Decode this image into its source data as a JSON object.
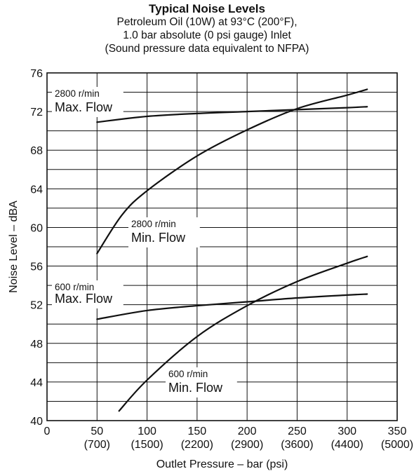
{
  "chart_data": {
    "type": "line",
    "title": "Typical Noise Levels",
    "subtitle": [
      "Petroleum Oil (10W) at 93°C (200°F),",
      "1.0 bar absolute (0 psi gauge) Inlet",
      "(Sound pressure data equivalent to NFPA)"
    ],
    "xlabel": "Outlet Pressure – bar (psi)",
    "ylabel": "Noise Level – dBA",
    "xlim": [
      0,
      350
    ],
    "ylim": [
      40,
      76
    ],
    "x_ticks": [
      {
        "value": 0,
        "label": "0",
        "sub": ""
      },
      {
        "value": 50,
        "label": "50",
        "sub": "(700)"
      },
      {
        "value": 100,
        "label": "100",
        "sub": "(1500)"
      },
      {
        "value": 150,
        "label": "150",
        "sub": "(2200)"
      },
      {
        "value": 200,
        "label": "200",
        "sub": "(2900)"
      },
      {
        "value": 250,
        "label": "250",
        "sub": "(3600)"
      },
      {
        "value": 300,
        "label": "300",
        "sub": "(4400)"
      },
      {
        "value": 350,
        "label": "350",
        "sub": "(5000)"
      }
    ],
    "y_ticks": [
      40,
      44,
      48,
      52,
      56,
      60,
      64,
      68,
      72,
      76
    ],
    "grid": true,
    "series": [
      {
        "name_line1": "2800 r/min",
        "name_line2": "Max. Flow",
        "x": [
          50,
          100,
          150,
          200,
          250,
          300,
          320
        ],
        "y": [
          70.9,
          71.5,
          71.8,
          72.0,
          72.2,
          72.4,
          72.5
        ]
      },
      {
        "name_line1": "2800 r/min",
        "name_line2": "Min. Flow",
        "x": [
          50,
          75,
          100,
          150,
          200,
          250,
          300,
          320
        ],
        "y": [
          57.3,
          61.3,
          63.8,
          67.4,
          70.1,
          72.3,
          73.7,
          74.3
        ]
      },
      {
        "name_line1": "600 r/min",
        "name_line2": "Max. Flow",
        "x": [
          50,
          100,
          150,
          200,
          250,
          300,
          320
        ],
        "y": [
          50.5,
          51.4,
          51.9,
          52.3,
          52.7,
          53.0,
          53.1
        ]
      },
      {
        "name_line1": "600 r/min",
        "name_line2": "Min. Flow",
        "x": [
          72,
          100,
          150,
          200,
          250,
          300,
          320
        ],
        "y": [
          41.0,
          44.2,
          48.7,
          51.9,
          54.4,
          56.3,
          57.0
        ]
      }
    ]
  }
}
